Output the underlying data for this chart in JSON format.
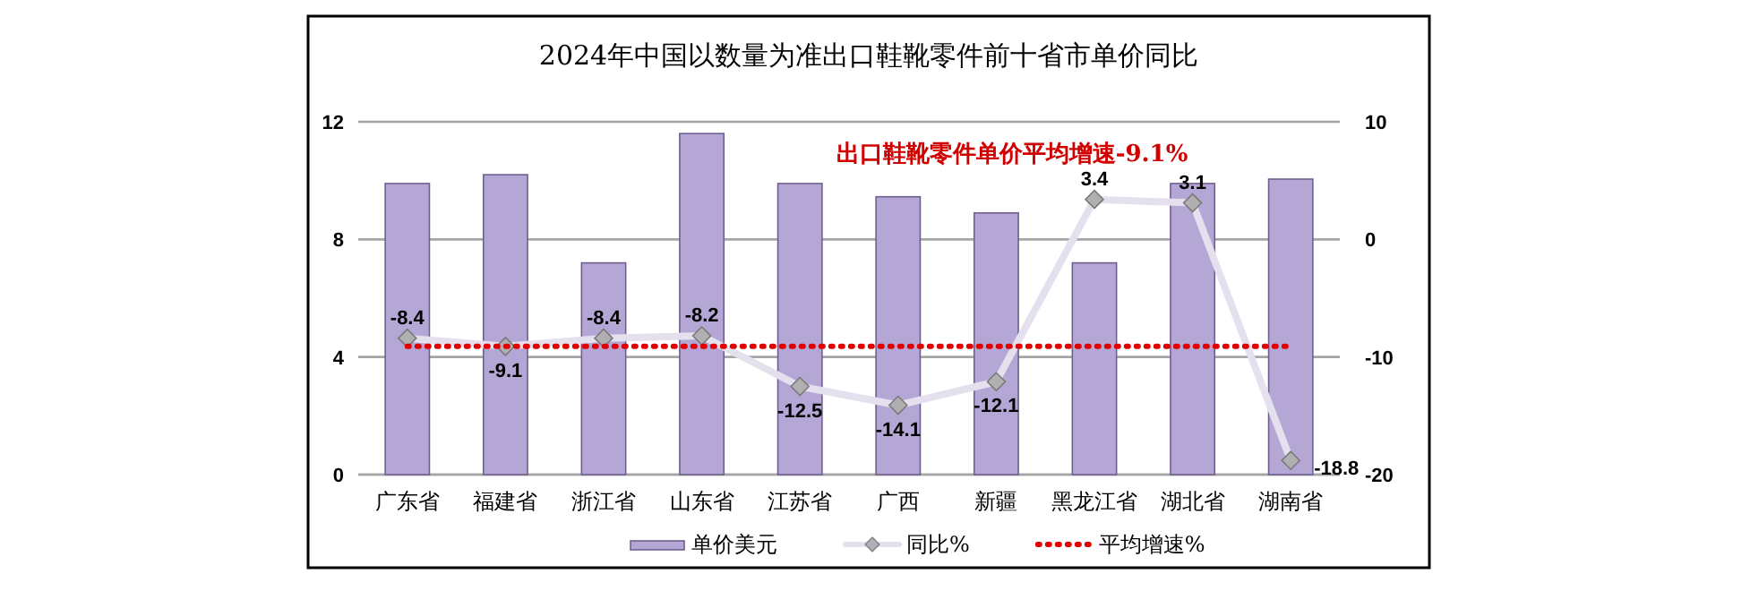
{
  "chart_data": {
    "type": "bar",
    "title": "2024年中国以数量为准出口鞋靴零件前十省市单价同比",
    "categories": [
      "广东省",
      "福建省",
      "浙江省",
      "山东省",
      "江苏省",
      "广西",
      "新疆",
      "黑龙江省",
      "湖北省",
      "湖南省"
    ],
    "series": [
      {
        "name": "单价美元",
        "color": "#b4a7d6",
        "values": [
          9.9,
          10.2,
          7.2,
          11.6,
          9.9,
          9.45,
          8.9,
          7.2,
          9.9,
          10.05
        ]
      },
      {
        "name": "同比%",
        "type": "line",
        "axis": "y2",
        "color": "#e4e0ee",
        "marker": "diamond",
        "values": [
          -8.4,
          -9.1,
          -8.4,
          -8.2,
          -12.5,
          -14.1,
          -12.1,
          3.4,
          3.1,
          -18.8
        ],
        "value_labels": [
          "-8.4",
          "-9.1",
          "-8.4",
          "-8.2",
          "-12.5",
          "-14.1",
          "-12.1",
          "3.4",
          "3.1",
          "-18.8"
        ]
      },
      {
        "name": "平均增速%",
        "type": "line",
        "axis": "y2",
        "color": "#e00000",
        "line_style": "dotted",
        "values": [
          -9.1,
          -9.1,
          -9.1,
          -9.1,
          -9.1,
          -9.1,
          -9.1,
          -9.1,
          -9.1,
          -9.1
        ]
      }
    ],
    "ylim": [
      0,
      12
    ],
    "yticks": [
      0,
      4,
      8,
      12
    ],
    "y2lim": [
      -20,
      10
    ],
    "y2ticks": [
      -20,
      -10,
      0,
      10
    ],
    "grid": "y",
    "legend": "bottom",
    "annotations": [
      "出口鞋靴零件单价平均增速-9.1%"
    ]
  }
}
